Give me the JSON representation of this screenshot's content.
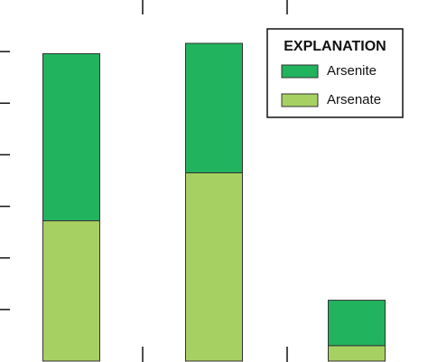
{
  "chart_data": {
    "type": "stacked_bar",
    "categories": [
      null,
      null,
      null
    ],
    "series": [
      {
        "name": "Arsenate",
        "color": "#a6d162",
        "values": [
          2.72,
          3.65,
          0.3
        ]
      },
      {
        "name": "Arsenite",
        "color": "#22b35e",
        "values": [
          3.24,
          2.51,
          0.88
        ]
      }
    ],
    "ylim": [
      0,
      7
    ],
    "yticks": [
      1,
      2,
      3,
      4,
      5,
      6
    ],
    "legend_title": "EXPLANATION",
    "legend": "upper right"
  }
}
